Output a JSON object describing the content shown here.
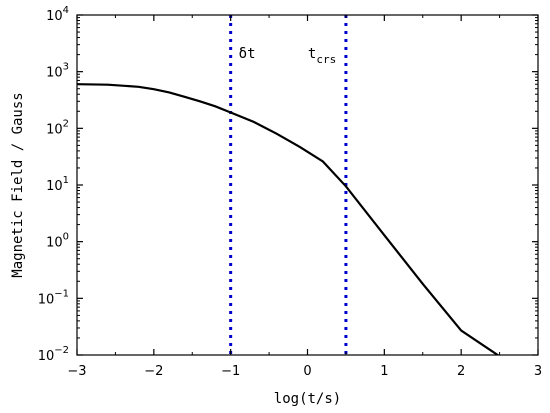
{
  "chart_data": {
    "type": "line",
    "xlabel": "log(t/s)",
    "ylabel": "Magnetic Field / Gauss",
    "xlim": [
      -3,
      3
    ],
    "ylim": [
      0.01,
      10000
    ],
    "yscale": "log",
    "grid": false,
    "x_ticks": [
      "-3",
      "-2",
      "-1",
      "0",
      "1",
      "2",
      "3"
    ],
    "y_ticks": [
      {
        "base": "10",
        "exp": "-2"
      },
      {
        "base": "10",
        "exp": "-1"
      },
      {
        "base": "10",
        "exp": "0"
      },
      {
        "base": "10",
        "exp": "1"
      },
      {
        "base": "10",
        "exp": "2"
      },
      {
        "base": "10",
        "exp": "3"
      },
      {
        "base": "10",
        "exp": "4"
      }
    ],
    "series": [
      {
        "color": "#000000",
        "x": [
          -3.0,
          -2.6,
          -2.2,
          -2.0,
          -1.8,
          -1.6,
          -1.4,
          -1.2,
          -1.0,
          -0.7,
          -0.4,
          -0.1,
          0.2,
          0.5,
          1.0,
          1.5,
          2.0,
          2.5
        ],
        "y": [
          600,
          590,
          540,
          490,
          430,
          360,
          300,
          245,
          190,
          130,
          80,
          47,
          26,
          9.5,
          1.3,
          0.18,
          0.027,
          0.0095
        ]
      }
    ],
    "vlines": [
      {
        "x": -1.0,
        "label": "δt",
        "label_sub": "",
        "color": "#0000cc",
        "style": "dotted"
      },
      {
        "x": 0.5,
        "label": "t",
        "label_sub": "crs",
        "color": "#0000cc",
        "style": "dotted"
      }
    ]
  }
}
